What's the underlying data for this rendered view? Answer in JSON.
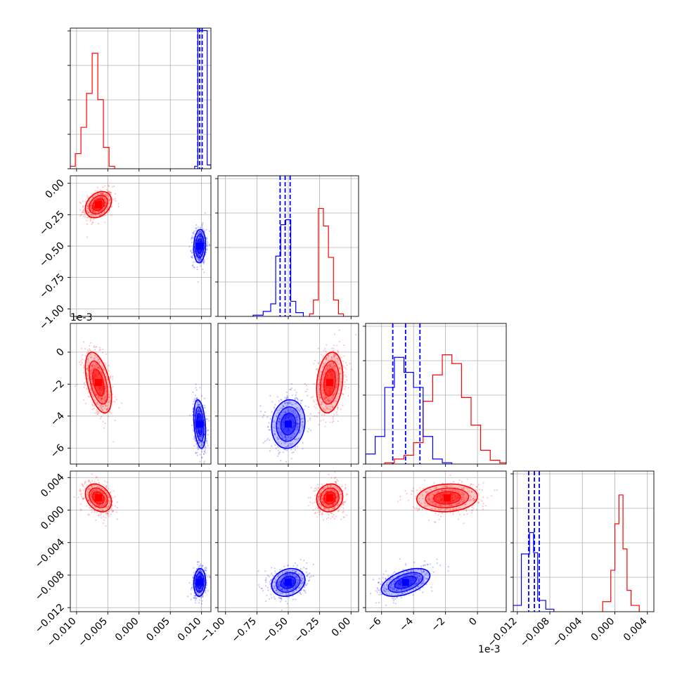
{
  "chart_data": {
    "type": "corner",
    "parameters": 4,
    "grid": true,
    "colors": {
      "red": "#ff0000",
      "blue": "#0000ff",
      "axes": "#000000",
      "grid": "#b0b0b0"
    },
    "offset_labels": {
      "param3": "1e-3"
    },
    "axes": [
      {
        "range": [
          -0.011,
          0.0115
        ],
        "ticks": [
          -0.01,
          -0.005,
          0.0,
          0.005,
          0.01
        ],
        "tick_labels": [
          "−0.010",
          "−0.005",
          "0.000",
          "0.005",
          "0.010"
        ]
      },
      {
        "range": [
          -1.06,
          0.06
        ],
        "ticks": [
          -1.0,
          -0.75,
          -0.5,
          -0.25,
          0.0
        ],
        "tick_labels": [
          "−1.00",
          "−0.75",
          "−0.50",
          "−0.25",
          "0.00"
        ]
      },
      {
        "range": [
          -7.0,
          1.8
        ],
        "ticks": [
          -6,
          -4,
          -2,
          0
        ],
        "tick_labels": [
          "−6",
          "−4",
          "−2",
          "0"
        ]
      },
      {
        "range": [
          -0.0125,
          0.0048
        ],
        "ticks": [
          -0.012,
          -0.008,
          -0.004,
          0.0,
          0.004
        ],
        "tick_labels": [
          "−0.012",
          "−0.008",
          "−0.004",
          "0.000",
          "0.004"
        ]
      }
    ],
    "series": [
      {
        "color": "#ff0000",
        "mean": [
          -0.0065,
          -0.17,
          -1.9,
          0.0015
        ],
        "std": [
          0.0011,
          0.055,
          1.0,
          0.0009
        ],
        "corr": [
          [
            1,
            0.3,
            -0.5,
            -0.3
          ],
          [
            0.3,
            1,
            0.2,
            0.1
          ],
          [
            -0.5,
            0.2,
            1,
            0.1
          ],
          [
            -0.3,
            0.1,
            0.1,
            1
          ]
        ]
      },
      {
        "color": "#0000ff",
        "mean": [
          0.0097,
          -0.5,
          -4.5,
          -0.0089
        ],
        "std": [
          0.0005,
          0.07,
          0.8,
          0.0009
        ],
        "corr": [
          [
            1,
            0.1,
            -0.3,
            0.1
          ],
          [
            0.1,
            1,
            0.1,
            0.2
          ],
          [
            -0.3,
            0.1,
            1,
            0.5
          ],
          [
            0.1,
            0.2,
            0.5,
            1
          ]
        ]
      }
    ],
    "histograms": [
      {
        "red": [
          [
            -0.0111,
            -0.0102,
            0.02
          ],
          [
            -0.0102,
            -0.0093,
            0.12
          ],
          [
            -0.0093,
            -0.0084,
            0.33
          ],
          [
            -0.0084,
            -0.0075,
            0.6
          ],
          [
            -0.0075,
            -0.0066,
            0.92
          ],
          [
            -0.0066,
            -0.0057,
            0.55
          ],
          [
            -0.0057,
            -0.0048,
            0.17
          ],
          [
            -0.0048,
            -0.0039,
            0.02
          ]
        ],
        "blue": [
          [
            0.0089,
            0.0094,
            0.02
          ],
          [
            0.0094,
            0.0099,
            1.1
          ],
          [
            0.0099,
            0.0104,
            1.1
          ],
          [
            0.0104,
            0.0109,
            1.1
          ],
          [
            0.0109,
            0.0115,
            0.03
          ]
        ],
        "blue_quantiles": [
          0.0094,
          0.0097,
          0.0101
        ]
      },
      {
        "red": [
          [
            -0.33,
            -0.3,
            0.02
          ],
          [
            -0.3,
            -0.26,
            0.13
          ],
          [
            -0.26,
            -0.22,
            0.86
          ],
          [
            -0.22,
            -0.18,
            0.72
          ],
          [
            -0.18,
            -0.14,
            0.47
          ],
          [
            -0.14,
            -0.1,
            0.13
          ],
          [
            -0.1,
            -0.06,
            0.02
          ]
        ],
        "blue": [
          [
            -0.78,
            -0.7,
            0.01
          ],
          [
            -0.7,
            -0.64,
            0.04
          ],
          [
            -0.64,
            -0.6,
            0.1
          ],
          [
            -0.6,
            -0.56,
            0.48
          ],
          [
            -0.56,
            -0.52,
            0.73
          ],
          [
            -0.52,
            -0.48,
            0.77
          ],
          [
            -0.48,
            -0.44,
            0.12
          ],
          [
            -0.44,
            -0.38,
            0.03
          ]
        ],
        "blue_quantiles": [
          -0.565,
          -0.525,
          -0.485
        ]
      },
      {
        "red": [
          [
            -5.8,
            -5.2,
            0.01
          ],
          [
            -5.2,
            -4.6,
            0.04
          ],
          [
            -4.6,
            -4.0,
            0.07
          ],
          [
            -4.0,
            -3.4,
            0.17
          ],
          [
            -3.4,
            -2.8,
            0.5
          ],
          [
            -2.8,
            -2.2,
            0.71
          ],
          [
            -2.2,
            -1.6,
            0.87
          ],
          [
            -1.6,
            -1.0,
            0.8
          ],
          [
            -1.0,
            -0.4,
            0.53
          ],
          [
            -0.4,
            0.2,
            0.31
          ],
          [
            0.2,
            0.8,
            0.11
          ],
          [
            0.8,
            1.4,
            0.03
          ],
          [
            1.4,
            1.8,
            0.01
          ]
        ],
        "blue": [
          [
            -7.0,
            -6.4,
            0.08
          ],
          [
            -6.4,
            -5.8,
            0.22
          ],
          [
            -5.8,
            -5.2,
            0.61
          ],
          [
            -5.2,
            -4.6,
            0.85
          ],
          [
            -4.6,
            -4.0,
            0.73
          ],
          [
            -4.0,
            -3.4,
            0.61
          ],
          [
            -3.4,
            -2.8,
            0.22
          ],
          [
            -2.8,
            -2.2,
            0.04
          ],
          [
            -2.2,
            -1.6,
            0.01
          ]
        ],
        "blue_quantiles": [
          -5.3,
          -4.5,
          -3.6
        ]
      },
      {
        "red": [
          [
            -0.0015,
            -0.0005,
            0.08
          ],
          [
            -0.0005,
            0.0,
            0.33
          ],
          [
            0.0,
            0.0005,
            0.7
          ],
          [
            0.0005,
            0.001,
            0.93
          ],
          [
            0.001,
            0.0015,
            0.5
          ],
          [
            0.0015,
            0.002,
            0.17
          ],
          [
            0.002,
            0.003,
            0.05
          ]
        ],
        "blue": [
          [
            -0.0125,
            -0.0115,
            0.05
          ],
          [
            -0.0115,
            -0.0105,
            0.46
          ],
          [
            -0.0105,
            -0.01,
            0.63
          ],
          [
            -0.01,
            -0.0095,
            0.47
          ],
          [
            -0.0095,
            -0.0085,
            0.09
          ],
          [
            -0.0085,
            -0.0075,
            0.02
          ]
        ],
        "blue_quantiles": [
          -0.0106,
          -0.0099,
          -0.0093
        ]
      }
    ]
  }
}
